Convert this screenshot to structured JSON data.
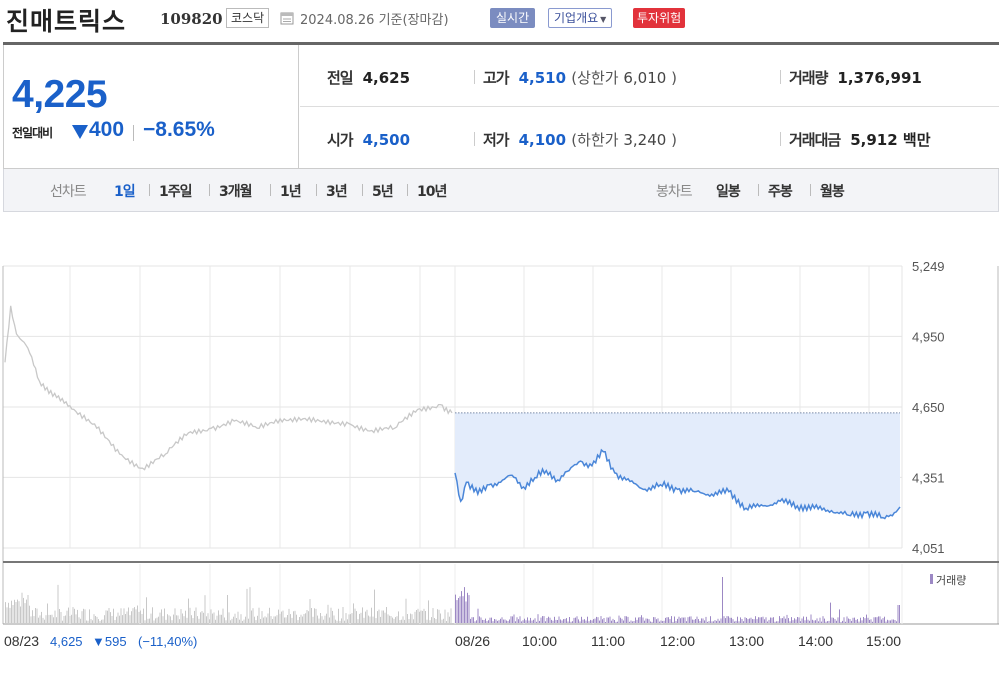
{
  "header": {
    "name": "진매트릭스",
    "code": "109820",
    "market": "코스닥",
    "date": "2024.08.26",
    "basis": "기준(장마감)",
    "realtime_label": "실시간",
    "company_info_label": "기업개요",
    "risk_label": "투자위험"
  },
  "price": {
    "current": "4,225",
    "compare_label": "전일대비",
    "change": "400",
    "change_pct": "−8.65%",
    "color": "#1a60c9"
  },
  "stats": {
    "prev_label": "전일",
    "prev": "4,625",
    "high_label": "고가",
    "high": "4,510",
    "upper_label": "상한가",
    "upper": "6,010",
    "volume_label": "거래량",
    "volume": "1,376,991",
    "open_label": "시가",
    "open": "4,500",
    "low_label": "저가",
    "low": "4,100",
    "lower_label": "하한가",
    "lower": "3,240",
    "amount_label": "거래대금",
    "amount": "5,912",
    "amount_unit": "백만"
  },
  "periods": {
    "line_label": "선차트",
    "line_options": [
      "1일",
      "1주일",
      "3개월",
      "1년",
      "3년",
      "5년",
      "10년"
    ],
    "selected": "1일",
    "candle_label": "봉차트",
    "candle_options": [
      "일봉",
      "주봉",
      "월봉"
    ]
  },
  "chart_data": {
    "type": "line",
    "y_ticks": [
      "5,249",
      "4,950",
      "4,650",
      "4,351",
      "4,051"
    ],
    "ylim": [
      4051,
      5249
    ],
    "x_ticks": [
      "08/23",
      "08/26",
      "10:00",
      "11:00",
      "12:00",
      "13:00",
      "14:00",
      "15:00"
    ],
    "prev_close": 4625,
    "colors": {
      "prev_day": "#c8c8c8",
      "today": "#4a86d8",
      "fill": "#e3ecfb",
      "volume_today": "#9c88c4",
      "volume_prev": "#c8c8c8"
    },
    "prev_day_summary": {
      "date": "08/23",
      "close": "4,625",
      "change": "▼595",
      "change_pct": "(−11,40%)"
    },
    "volume_legend": "거래량",
    "series": [
      {
        "date": "08/23",
        "x": [
          "09:00",
          "09:05",
          "09:10",
          "09:20",
          "09:30",
          "09:45",
          "10:00",
          "10:20",
          "10:40",
          "11:00",
          "11:20",
          "11:40",
          "12:00",
          "12:20",
          "12:40",
          "13:00",
          "13:20",
          "13:40",
          "14:00",
          "14:20",
          "14:40",
          "15:00",
          "15:20",
          "15:30"
        ],
        "values": [
          4840,
          5080,
          4960,
          4900,
          4760,
          4690,
          4640,
          4560,
          4450,
          4390,
          4450,
          4540,
          4560,
          4590,
          4560,
          4600,
          4600,
          4580,
          4580,
          4550,
          4560,
          4640,
          4660,
          4625
        ]
      },
      {
        "date": "08/26",
        "x": [
          "09:00",
          "09:05",
          "09:10",
          "09:20",
          "09:30",
          "09:40",
          "09:50",
          "10:00",
          "10:10",
          "10:20",
          "10:30",
          "10:40",
          "10:50",
          "11:00",
          "11:10",
          "11:20",
          "11:30",
          "11:45",
          "12:00",
          "12:15",
          "12:30",
          "12:45",
          "13:00",
          "13:15",
          "13:30",
          "13:45",
          "14:00",
          "14:15",
          "14:30",
          "14:45",
          "15:00",
          "15:15",
          "15:20",
          "15:30"
        ],
        "values": [
          4370,
          4250,
          4330,
          4280,
          4320,
          4330,
          4360,
          4310,
          4350,
          4380,
          4340,
          4380,
          4420,
          4400,
          4460,
          4370,
          4340,
          4300,
          4320,
          4300,
          4290,
          4280,
          4290,
          4220,
          4230,
          4250,
          4230,
          4220,
          4210,
          4190,
          4200,
          4180,
          4185,
          4225
        ]
      }
    ]
  }
}
